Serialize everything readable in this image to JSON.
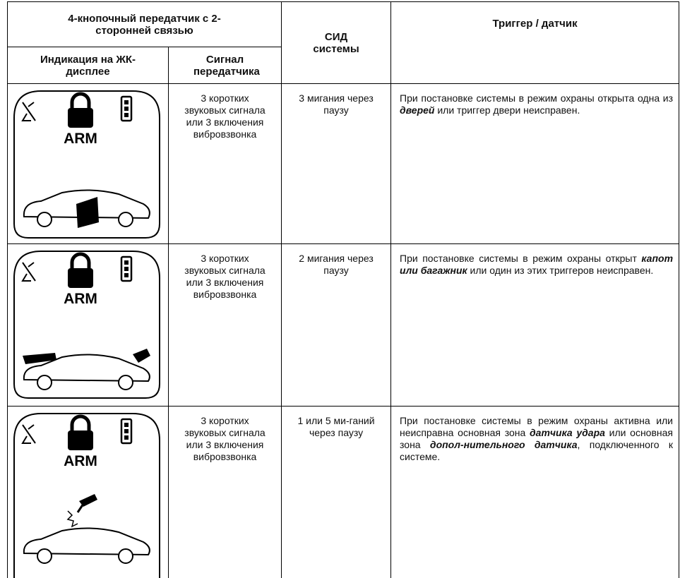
{
  "header": {
    "transmitter": "4-кнопочный передатчик с 2-сторонней связью",
    "lcd": "Индикация на ЖК-дисплее",
    "signal": "Сигнал передатчика",
    "led": "СИД системы",
    "trigger": "Триггер / датчик"
  },
  "rows": [
    {
      "lcd_label": "ARM",
      "signal": "3 коротких звуковых сигнала или 3 включения вибровзвонка",
      "led": "3 мигания через паузу",
      "trigger": [
        "При постановке системы в режим охраны открыта одна из ",
        "дверей",
        " или триггер двери неисправен."
      ]
    },
    {
      "lcd_label": "ARM",
      "signal": "3 коротких звуковых сигнала или 3 включения вибровзвонка",
      "led": "2 мигания через паузу",
      "trigger": [
        "При постановке системы в режим охраны открыт ",
        "капот или багажник",
        " или один из этих триггеров неисправен."
      ]
    },
    {
      "lcd_label": "ARM",
      "signal": "3 коротких звуковых сигнала или 3 включения вибровзвонка",
      "led": "1 или 5 ми-ганий через паузу",
      "trigger": [
        "При постановке системы в режим охраны активна или неисправна основная зона ",
        "датчика удара",
        " или основная зона ",
        "допол-нительного датчика",
        ", подключенного к системе."
      ]
    }
  ]
}
